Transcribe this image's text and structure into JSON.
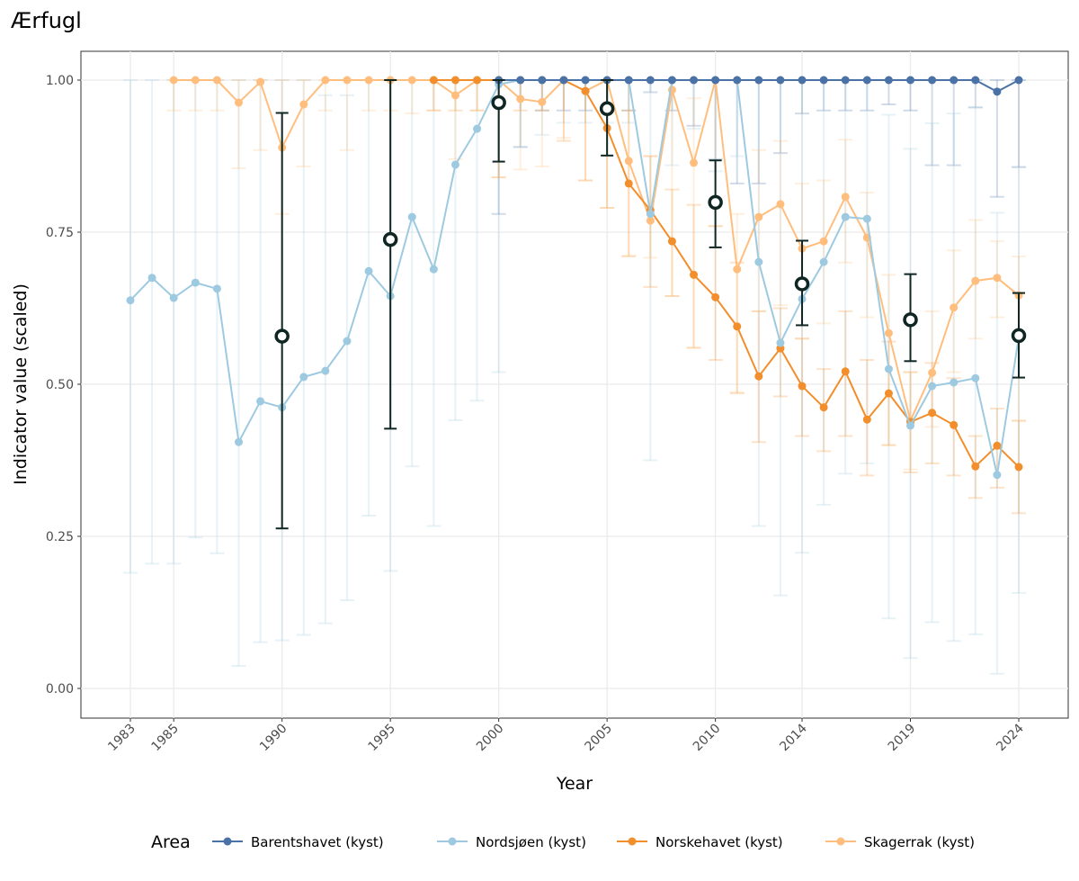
{
  "chart_data": {
    "type": "line",
    "title": "Ærfugl",
    "xlabel": "Year",
    "ylabel": "Indicator value (scaled)",
    "xlim": [
      1981.7,
      2026.3
    ],
    "ylim": [
      -0.05,
      1.05
    ],
    "x_ticks": [
      1983,
      1985,
      1990,
      1995,
      2000,
      2005,
      2010,
      2014,
      2019,
      2024
    ],
    "y_ticks": [
      0.0,
      0.25,
      0.5,
      0.75,
      1.0
    ],
    "y_tick_labels": [
      "0.00",
      "0.25",
      "0.50",
      "0.75",
      "1.00"
    ],
    "grid": true,
    "legend": {
      "title": "Area",
      "placement": "bottom"
    },
    "series": [
      {
        "name": "Barentshavet (kyst)",
        "color": "#4a72a6",
        "start": 2000,
        "values": [
          1,
          1,
          1,
          1,
          1,
          1,
          1,
          1,
          1,
          1,
          1,
          1,
          1,
          1,
          1,
          1,
          1,
          1,
          1,
          1,
          1,
          1,
          1,
          0.981,
          1
        ],
        "lower": [
          0.78,
          0.89,
          0.95,
          0.95,
          0.95,
          0.95,
          0.95,
          0.98,
          0.95,
          0.925,
          0.87,
          0.83,
          0.83,
          0.88,
          0.945,
          0.95,
          0.95,
          0.95,
          0.96,
          0.95,
          0.86,
          0.86,
          0.955,
          0.808,
          0.857
        ],
        "upper": [
          1,
          1,
          1,
          1,
          1,
          1,
          1,
          1,
          1,
          1,
          1,
          1,
          1,
          1,
          1,
          1,
          1,
          1,
          1,
          1,
          1,
          1,
          1,
          1,
          1
        ]
      },
      {
        "name": "Nordsjøen (kyst)",
        "color": "#9ecae1",
        "start": 1983,
        "values": [
          0.638,
          0.675,
          0.642,
          0.667,
          0.657,
          0.405,
          0.472,
          0.462,
          0.512,
          0.522,
          0.571,
          0.686,
          0.645,
          0.775,
          0.689,
          0.861,
          0.92,
          0.993,
          1,
          1,
          1,
          1,
          1,
          1,
          0.78,
          1,
          1,
          1,
          1,
          0.701,
          0.568,
          0.64,
          0.701,
          0.775,
          0.772,
          0.525,
          0.432,
          0.497,
          0.503,
          0.51,
          0.351,
          0.577
        ],
        "lower": [
          0.19,
          0.205,
          0.205,
          0.248,
          0.222,
          0.037,
          0.076,
          0.079,
          0.088,
          0.107,
          0.145,
          0.284,
          0.193,
          0.365,
          0.267,
          0.441,
          0.473,
          0.52,
          0.89,
          0.91,
          0.93,
          0.93,
          0.93,
          0.93,
          0.375,
          0.86,
          0.92,
          0.85,
          0.875,
          0.267,
          0.153,
          0.223,
          0.302,
          0.353,
          0.37,
          0.115,
          0.05,
          0.109,
          0.078,
          0.089,
          0.024,
          0.157
        ],
        "upper": [
          1,
          1,
          1,
          1,
          1,
          1,
          1,
          1,
          1,
          0.975,
          0.975,
          1,
          1,
          1,
          1,
          1,
          1,
          1,
          1,
          1,
          1,
          1,
          1,
          1,
          1,
          1,
          1,
          1,
          1,
          1,
          1,
          1,
          1,
          1,
          1,
          0.943,
          0.887,
          0.929,
          0.945,
          0.955,
          0.782,
          0.857
        ]
      },
      {
        "name": "Norskehavet (kyst)",
        "color": "#f28e2b",
        "start": 1997,
        "values": [
          1,
          1,
          1,
          1,
          1,
          1,
          1,
          0.982,
          0.921,
          0.83,
          0.786,
          0.735,
          0.68,
          0.643,
          0.595,
          0.513,
          0.559,
          0.497,
          0.462,
          0.521,
          0.442,
          0.485,
          0.438,
          0.453,
          0.433,
          0.365,
          0.399,
          0.364
        ],
        "lower": [
          0.95,
          0.95,
          0.95,
          0.84,
          0.95,
          0.95,
          0.9,
          0.835,
          0.79,
          0.71,
          0.66,
          0.645,
          0.56,
          0.54,
          0.485,
          0.405,
          0.48,
          0.415,
          0.39,
          0.415,
          0.35,
          0.4,
          0.355,
          0.37,
          0.35,
          0.313,
          0.33,
          0.288
        ],
        "upper": [
          1,
          1,
          1,
          1,
          1,
          1,
          1,
          1,
          1,
          0.95,
          0.875,
          0.82,
          0.795,
          0.76,
          0.7,
          0.62,
          0.625,
          0.575,
          0.525,
          0.62,
          0.54,
          0.57,
          0.52,
          0.535,
          0.51,
          0.415,
          0.46,
          0.44
        ]
      },
      {
        "name": "Skagerrak (kyst)",
        "color": "#ffbe7d",
        "start": 1985,
        "values": [
          1,
          1,
          1,
          0.963,
          0.997,
          0.889,
          0.96,
          1,
          1,
          1,
          1,
          1,
          1,
          0.975,
          1,
          1,
          0.969,
          0.964,
          1,
          0.982,
          1,
          0.867,
          0.769,
          0.984,
          0.864,
          1,
          0.689,
          0.775,
          0.796,
          0.723,
          0.735,
          0.808,
          0.741,
          0.584,
          0.44,
          0.519,
          0.626,
          0.67,
          0.675,
          0.646
        ],
        "lower": [
          0.95,
          0.95,
          0.95,
          0.855,
          0.885,
          0.78,
          0.858,
          0.95,
          0.885,
          0.95,
          0.95,
          0.945,
          0.95,
          0.87,
          0.95,
          0.84,
          0.853,
          0.858,
          0.905,
          0.835,
          0.79,
          0.712,
          0.708,
          0.645,
          0.56,
          0.76,
          0.487,
          0.62,
          0.63,
          0.575,
          0.6,
          0.7,
          0.61,
          0.4,
          0.36,
          0.43,
          0.52,
          0.575,
          0.61,
          0.44
        ],
        "upper": [
          1,
          1,
          1,
          1,
          1,
          1,
          1,
          1,
          1,
          1,
          1,
          1,
          1,
          1,
          1,
          1,
          1,
          1,
          1,
          1,
          1,
          1,
          0.875,
          1,
          0.97,
          1,
          0.78,
          0.885,
          0.9,
          0.83,
          0.835,
          0.902,
          0.815,
          0.68,
          0.52,
          0.62,
          0.72,
          0.77,
          0.735,
          0.71
        ]
      }
    ],
    "aggregate": {
      "color": "#0f2623",
      "x": [
        1990,
        1995,
        2000,
        2005,
        2010,
        2014,
        2019,
        2024
      ],
      "values": [
        0.579,
        0.738,
        0.963,
        0.953,
        0.799,
        0.665,
        0.606,
        0.58
      ],
      "lower": [
        0.263,
        0.427,
        0.866,
        0.876,
        0.725,
        0.597,
        0.538,
        0.511
      ],
      "upper": [
        0.946,
        1.0,
        1.0,
        1.0,
        0.868,
        0.736,
        0.681,
        0.65
      ]
    }
  }
}
